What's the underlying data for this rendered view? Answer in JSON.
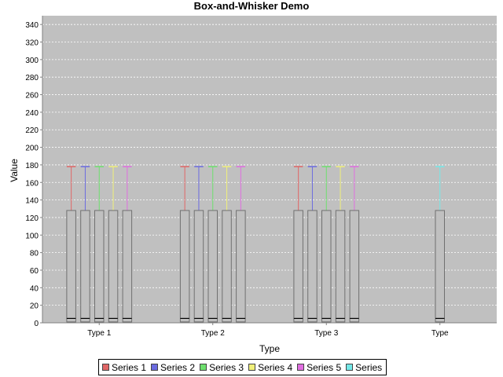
{
  "chart_data": {
    "type": "box",
    "title": "Box-and-Whisker Demo",
    "xlabel": "Type",
    "ylabel": "Value",
    "ylim": [
      0,
      350
    ],
    "yticks": [
      0,
      20,
      40,
      60,
      80,
      100,
      120,
      140,
      160,
      180,
      200,
      220,
      240,
      260,
      280,
      300,
      320,
      340
    ],
    "grid": true,
    "legend_position": "bottom",
    "categories": [
      "Type 1",
      "Type 2",
      "Type 3",
      "Type"
    ],
    "series": [
      {
        "name": "Series 1",
        "color": "#e06666",
        "boxes": [
          {
            "category": 0,
            "min": 1,
            "q1": 1,
            "median": 5,
            "q3": 128,
            "max": 178
          },
          {
            "category": 1,
            "min": 1,
            "q1": 1,
            "median": 5,
            "q3": 128,
            "max": 178
          },
          {
            "category": 2,
            "min": 1,
            "q1": 1,
            "median": 5,
            "q3": 128,
            "max": 178
          }
        ]
      },
      {
        "name": "Series 2",
        "color": "#6b6be0",
        "boxes": [
          {
            "category": 0,
            "min": 1,
            "q1": 1,
            "median": 5,
            "q3": 128,
            "max": 178
          },
          {
            "category": 1,
            "min": 1,
            "q1": 1,
            "median": 5,
            "q3": 128,
            "max": 178
          },
          {
            "category": 2,
            "min": 1,
            "q1": 1,
            "median": 5,
            "q3": 128,
            "max": 178
          }
        ]
      },
      {
        "name": "Series 3",
        "color": "#6ee06e",
        "boxes": [
          {
            "category": 0,
            "min": 1,
            "q1": 1,
            "median": 5,
            "q3": 128,
            "max": 178
          },
          {
            "category": 1,
            "min": 1,
            "q1": 1,
            "median": 5,
            "q3": 128,
            "max": 178
          },
          {
            "category": 2,
            "min": 1,
            "q1": 1,
            "median": 5,
            "q3": 128,
            "max": 178
          }
        ]
      },
      {
        "name": "Series 4",
        "color": "#f0f07a",
        "boxes": [
          {
            "category": 0,
            "min": 1,
            "q1": 1,
            "median": 5,
            "q3": 128,
            "max": 178
          },
          {
            "category": 1,
            "min": 1,
            "q1": 1,
            "median": 5,
            "q3": 128,
            "max": 178
          },
          {
            "category": 2,
            "min": 1,
            "q1": 1,
            "median": 5,
            "q3": 128,
            "max": 178
          }
        ]
      },
      {
        "name": "Series 5",
        "color": "#e06ee0",
        "boxes": [
          {
            "category": 0,
            "min": 1,
            "q1": 1,
            "median": 5,
            "q3": 128,
            "max": 178
          },
          {
            "category": 1,
            "min": 1,
            "q1": 1,
            "median": 5,
            "q3": 128,
            "max": 178
          },
          {
            "category": 2,
            "min": 1,
            "q1": 1,
            "median": 5,
            "q3": 128,
            "max": 178
          }
        ]
      },
      {
        "name": "Series",
        "color": "#74e8e8",
        "boxes": [
          {
            "category": 3,
            "min": 1,
            "q1": 1,
            "median": 5,
            "q3": 128,
            "max": 178
          }
        ]
      }
    ]
  }
}
